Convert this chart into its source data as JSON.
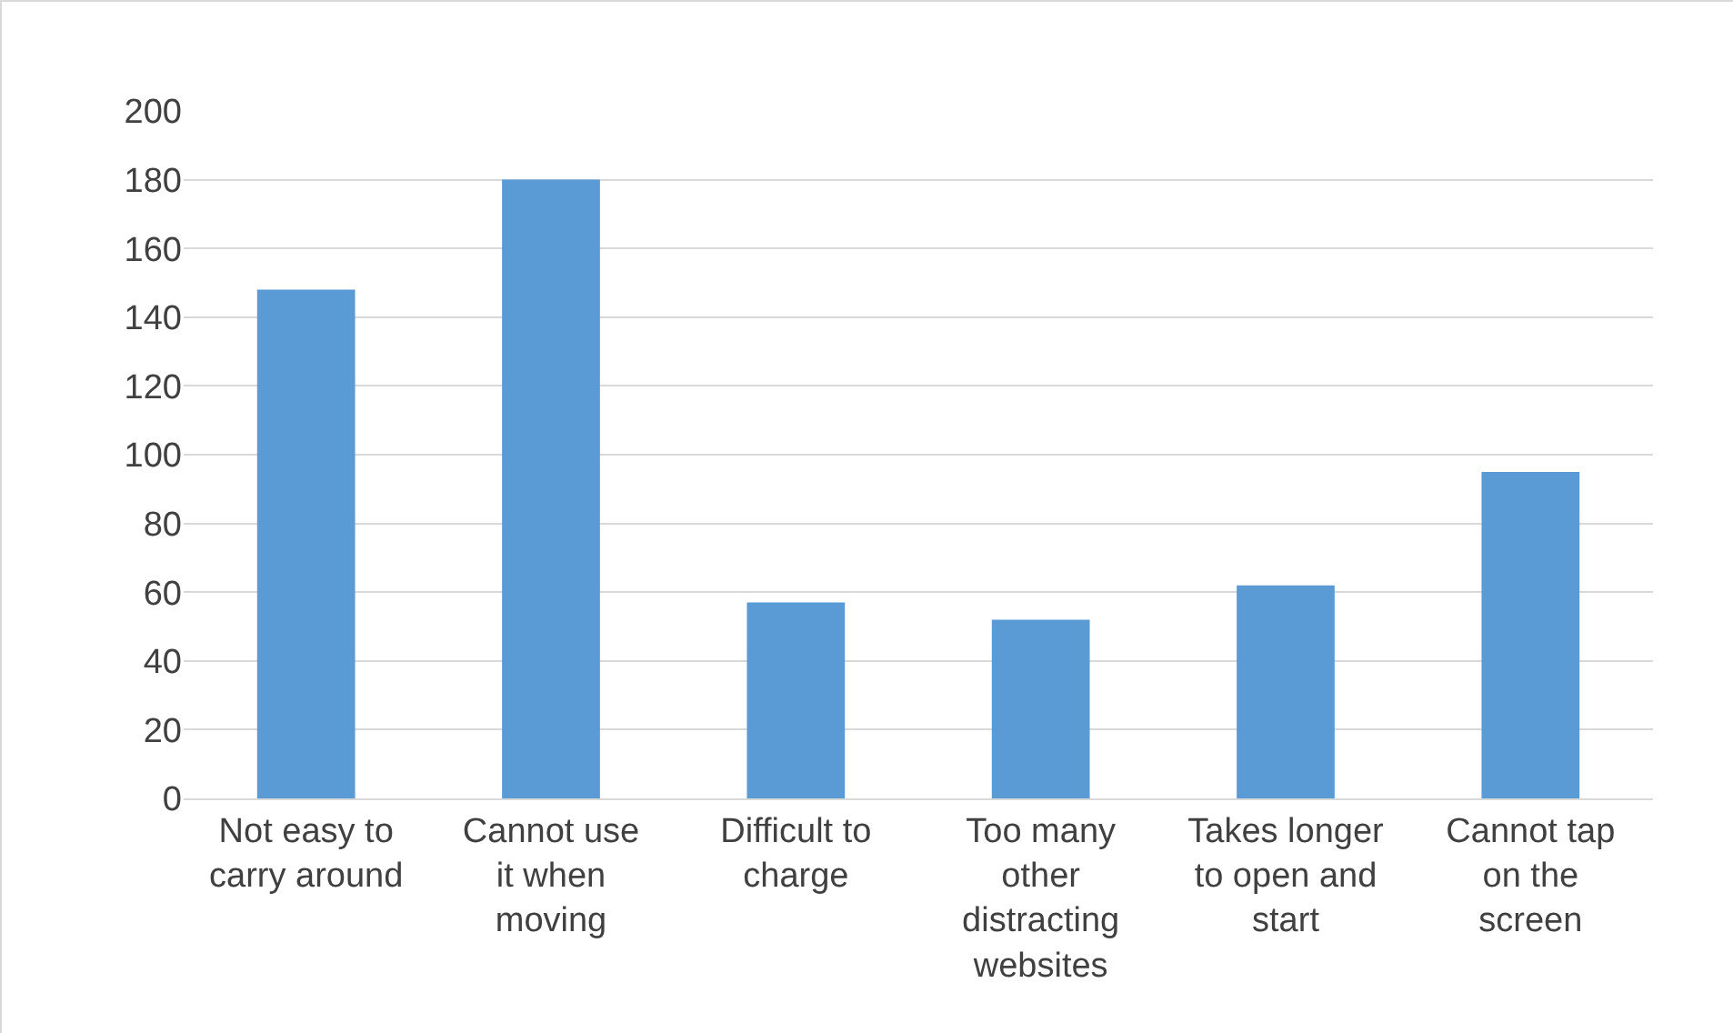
{
  "chart_data": {
    "type": "bar",
    "categories": [
      "Not easy to carry around",
      "Cannot use it when moving",
      "Difficult to charge",
      "Too many other distracting websites",
      "Takes longer to open and start",
      "Cannot tap on the screen"
    ],
    "values": [
      148,
      180,
      57,
      52,
      62,
      95
    ],
    "color": "#5b9bd5",
    "ylim": [
      0,
      200
    ],
    "yticks": [
      0,
      20,
      40,
      60,
      80,
      100,
      120,
      140,
      160,
      180,
      200
    ],
    "grid": "y"
  }
}
